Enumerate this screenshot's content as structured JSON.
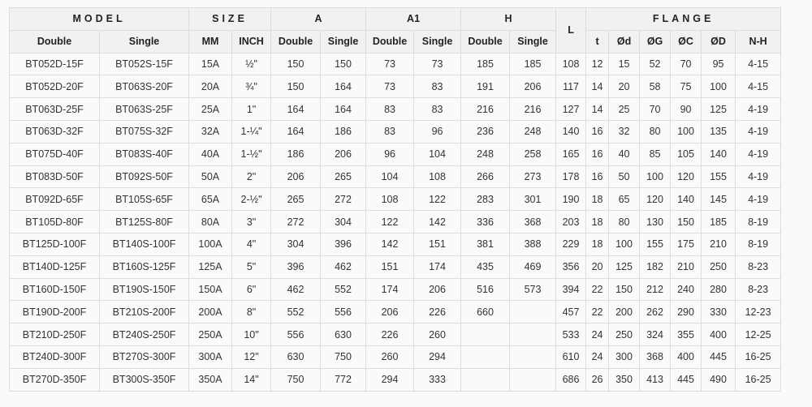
{
  "table": {
    "group_headers": {
      "model": "MODEL",
      "size": "SIZE",
      "a": "A",
      "a1": "A1",
      "h": "H",
      "l": "L",
      "flange": "FLANGE"
    },
    "sub_headers": [
      "Double",
      "Single",
      "MM",
      "INCH",
      "Double",
      "Single",
      "Double",
      "Single",
      "Double",
      "Single",
      "t",
      "Ød",
      "ØG",
      "ØC",
      "ØD",
      "N-H"
    ],
    "rows": [
      [
        "BT052D-15F",
        "BT052S-15F",
        "15A",
        "½\"",
        "150",
        "150",
        "73",
        "73",
        "185",
        "185",
        "108",
        "12",
        "15",
        "52",
        "70",
        "95",
        "4-15"
      ],
      [
        "BT052D-20F",
        "BT063S-20F",
        "20A",
        "¾\"",
        "150",
        "164",
        "73",
        "83",
        "191",
        "206",
        "117",
        "14",
        "20",
        "58",
        "75",
        "100",
        "4-15"
      ],
      [
        "BT063D-25F",
        "BT063S-25F",
        "25A",
        "1\"",
        "164",
        "164",
        "83",
        "83",
        "216",
        "216",
        "127",
        "14",
        "25",
        "70",
        "90",
        "125",
        "4-19"
      ],
      [
        "BT063D-32F",
        "BT075S-32F",
        "32A",
        "1-¼\"",
        "164",
        "186",
        "83",
        "96",
        "236",
        "248",
        "140",
        "16",
        "32",
        "80",
        "100",
        "135",
        "4-19"
      ],
      [
        "BT075D-40F",
        "BT083S-40F",
        "40A",
        "1-½\"",
        "186",
        "206",
        "96",
        "104",
        "248",
        "258",
        "165",
        "16",
        "40",
        "85",
        "105",
        "140",
        "4-19"
      ],
      [
        "BT083D-50F",
        "BT092S-50F",
        "50A",
        "2\"",
        "206",
        "265",
        "104",
        "108",
        "266",
        "273",
        "178",
        "16",
        "50",
        "100",
        "120",
        "155",
        "4-19"
      ],
      [
        "BT092D-65F",
        "BT105S-65F",
        "65A",
        "2-½\"",
        "265",
        "272",
        "108",
        "122",
        "283",
        "301",
        "190",
        "18",
        "65",
        "120",
        "140",
        "145",
        "4-19"
      ],
      [
        "BT105D-80F",
        "BT125S-80F",
        "80A",
        "3\"",
        "272",
        "304",
        "122",
        "142",
        "336",
        "368",
        "203",
        "18",
        "80",
        "130",
        "150",
        "185",
        "8-19"
      ],
      [
        "BT125D-100F",
        "BT140S-100F",
        "100A",
        "4\"",
        "304",
        "396",
        "142",
        "151",
        "381",
        "388",
        "229",
        "18",
        "100",
        "155",
        "175",
        "210",
        "8-19"
      ],
      [
        "BT140D-125F",
        "BT160S-125F",
        "125A",
        "5\"",
        "396",
        "462",
        "151",
        "174",
        "435",
        "469",
        "356",
        "20",
        "125",
        "182",
        "210",
        "250",
        "8-23"
      ],
      [
        "BT160D-150F",
        "BT190S-150F",
        "150A",
        "6\"",
        "462",
        "552",
        "174",
        "206",
        "516",
        "573",
        "394",
        "22",
        "150",
        "212",
        "240",
        "280",
        "8-23"
      ],
      [
        "BT190D-200F",
        "BT210S-200F",
        "200A",
        "8\"",
        "552",
        "556",
        "206",
        "226",
        "660",
        "",
        "457",
        "22",
        "200",
        "262",
        "290",
        "330",
        "12-23"
      ],
      [
        "BT210D-250F",
        "BT240S-250F",
        "250A",
        "10\"",
        "556",
        "630",
        "226",
        "260",
        "",
        "",
        "533",
        "24",
        "250",
        "324",
        "355",
        "400",
        "12-25"
      ],
      [
        "BT240D-300F",
        "BT270S-300F",
        "300A",
        "12\"",
        "630",
        "750",
        "260",
        "294",
        "",
        "",
        "610",
        "24",
        "300",
        "368",
        "400",
        "445",
        "16-25"
      ],
      [
        "BT270D-350F",
        "BT300S-350F",
        "350A",
        "14\"",
        "750",
        "772",
        "294",
        "333",
        "",
        "",
        "686",
        "26",
        "350",
        "413",
        "445",
        "490",
        "16-25"
      ]
    ]
  }
}
